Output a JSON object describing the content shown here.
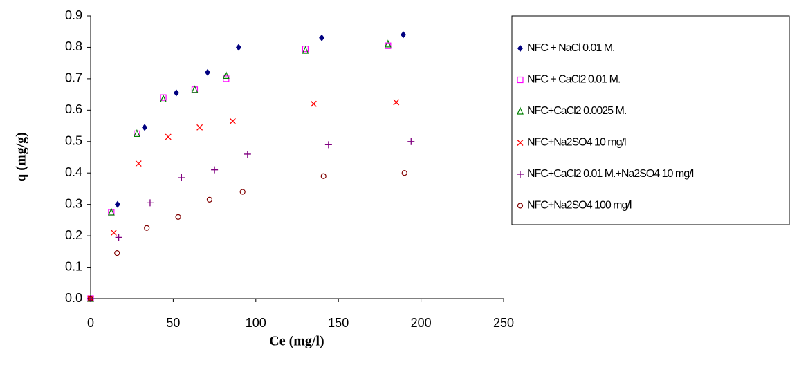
{
  "chart_data": {
    "type": "scatter",
    "xlabel": "Ce (mg/l)",
    "ylabel": "q (mg/g)",
    "xlim": [
      0,
      250
    ],
    "xticks": [
      0,
      50,
      100,
      150,
      200,
      250
    ],
    "ylim": [
      0,
      0.9
    ],
    "yticks": [
      {
        "value": 0,
        "label": "0.0"
      },
      0.1,
      0.2,
      0.3,
      0.4,
      0.5,
      0.6,
      0.7,
      0.8,
      0.9
    ],
    "legend": "right",
    "series": [
      {
        "name": "NFC + NaCl 0.01 M.",
        "color": "#000080",
        "marker": "diamond",
        "x": [
          0,
          16.3,
          32.7,
          51.9,
          70.8,
          89.6,
          139.9,
          189.3
        ],
        "values": [
          0,
          0.3,
          0.545,
          0.655,
          0.72,
          0.8,
          0.83,
          0.84
        ]
      },
      {
        "name": "NFC + CaCl2 0.01 M.",
        "color": "#ff00ff",
        "marker": "square",
        "x": [
          0,
          12.5,
          28,
          44,
          63,
          82,
          130,
          180
        ],
        "values": [
          0,
          0.275,
          0.525,
          0.64,
          0.665,
          0.7,
          0.795,
          0.805
        ]
      },
      {
        "name": "NFC+CaCl2 0.0025 M.",
        "color": "#008000",
        "marker": "triangle",
        "x": [
          0,
          12.5,
          28,
          44,
          63,
          82,
          130,
          180
        ],
        "values": [
          0,
          0.275,
          0.525,
          0.635,
          0.665,
          0.71,
          0.79,
          0.81
        ]
      },
      {
        "name": "NFC+Na2SO4 10 mg/l",
        "color": "#ff0000",
        "marker": "x",
        "x": [
          0,
          14,
          29,
          47,
          66,
          86,
          135,
          185
        ],
        "values": [
          0,
          0.21,
          0.43,
          0.515,
          0.545,
          0.565,
          0.62,
          0.625
        ]
      },
      {
        "name": "NFC+CaCl2 0.01 M.+Na2SO4 10 mg/l",
        "color": "#800080",
        "marker": "plus",
        "x": [
          0,
          17,
          36,
          55,
          75,
          95,
          144,
          194
        ],
        "values": [
          0,
          0.195,
          0.305,
          0.385,
          0.41,
          0.46,
          0.49,
          0.5
        ]
      },
      {
        "name": "NFC+Na2SO4 100 mg/l",
        "color": "#800000",
        "marker": "circle",
        "x": [
          0,
          16,
          34,
          53,
          72,
          92,
          141,
          190
        ],
        "values": [
          0,
          0.145,
          0.225,
          0.26,
          0.315,
          0.34,
          0.39,
          0.4
        ]
      }
    ]
  }
}
